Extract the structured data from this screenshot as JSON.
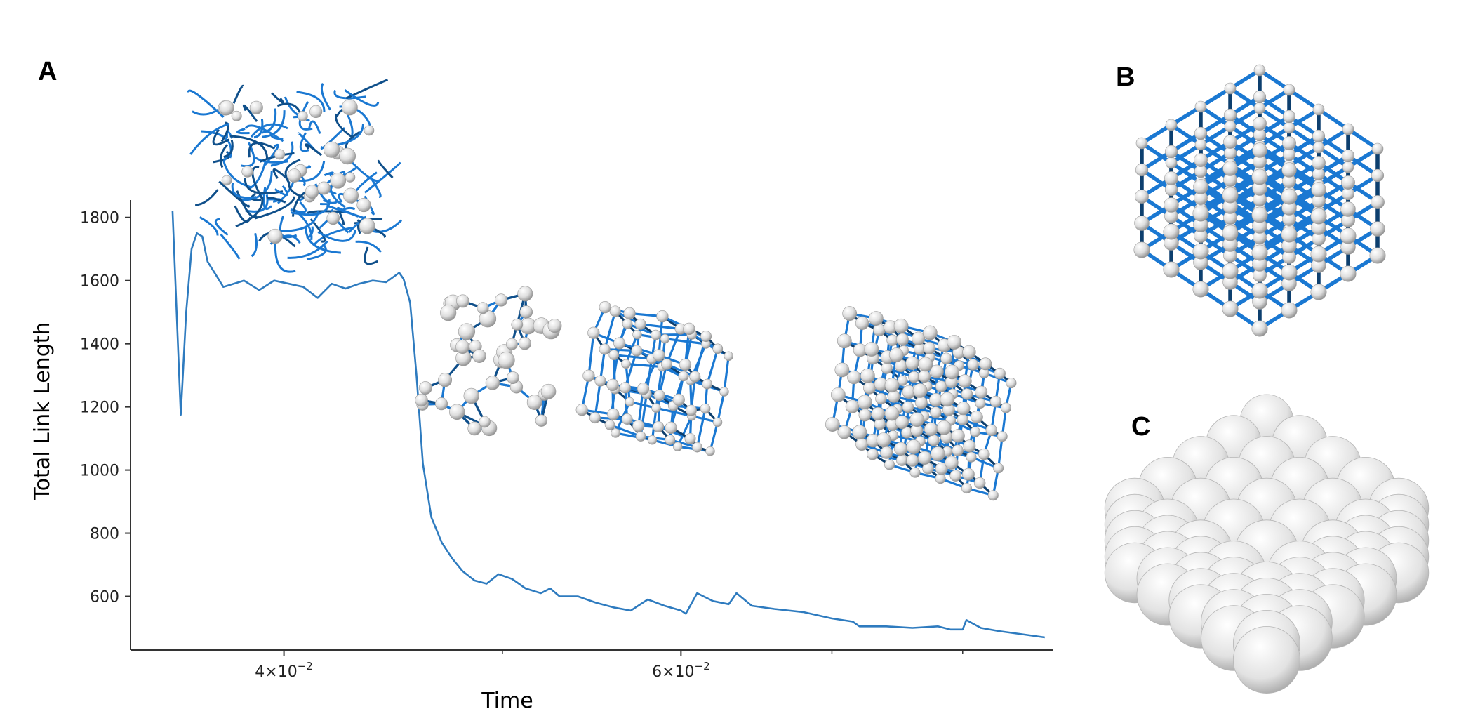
{
  "panels": {
    "a": "A",
    "b": "B",
    "c": "C"
  },
  "colors": {
    "line": "#2e7bbf",
    "link": "#1a78d2",
    "node": "#e6e6e6",
    "axis": "#333333"
  },
  "chart_data": {
    "type": "line",
    "xlabel": "Time",
    "ylabel": "Total Link Length",
    "xscale": "log",
    "xlim": [
      0.0342,
      0.0877
    ],
    "ylim": [
      430,
      1855
    ],
    "x_major_ticks": [
      {
        "value": 0.04,
        "base": "4×10",
        "exp": "−2"
      },
      {
        "value": 0.06,
        "base": "6×10",
        "exp": "−2"
      }
    ],
    "x_minor_ticks": [
      0.05,
      0.07,
      0.08
    ],
    "y_ticks": [
      600,
      800,
      1000,
      1200,
      1400,
      1600,
      1800
    ],
    "grid": false,
    "series": [
      {
        "x": [
          0.0357,
          0.036,
          0.0362,
          0.0364,
          0.0366,
          0.0368,
          0.037,
          0.0373,
          0.0376,
          0.038,
          0.0384,
          0.039,
          0.0396,
          0.0402,
          0.0408,
          0.0414,
          0.042,
          0.0426,
          0.0432,
          0.0438,
          0.0444,
          0.045,
          0.0452,
          0.0455,
          0.0458,
          0.0461,
          0.0465,
          0.047,
          0.0475,
          0.048,
          0.0486,
          0.0492,
          0.0498,
          0.0505,
          0.0512,
          0.052,
          0.0525,
          0.053,
          0.054,
          0.055,
          0.056,
          0.057,
          0.058,
          0.059,
          0.06,
          0.0603,
          0.061,
          0.062,
          0.063,
          0.0635,
          0.0645,
          0.066,
          0.068,
          0.07,
          0.0715,
          0.072,
          0.074,
          0.076,
          0.078,
          0.079,
          0.08,
          0.0803,
          0.0815,
          0.083,
          0.085,
          0.087
        ],
        "y": [
          1820,
          1175,
          1500,
          1700,
          1750,
          1740,
          1660,
          1620,
          1580,
          1590,
          1600,
          1570,
          1600,
          1590,
          1580,
          1545,
          1590,
          1575,
          1590,
          1600,
          1595,
          1625,
          1605,
          1530,
          1300,
          1020,
          850,
          770,
          720,
          680,
          650,
          640,
          670,
          655,
          625,
          610,
          625,
          600,
          600,
          580,
          565,
          555,
          590,
          570,
          555,
          545,
          610,
          585,
          575,
          610,
          570,
          560,
          550,
          530,
          520,
          505,
          505,
          500,
          505,
          495,
          495,
          525,
          500,
          490,
          480,
          470
        ]
      }
    ]
  }
}
